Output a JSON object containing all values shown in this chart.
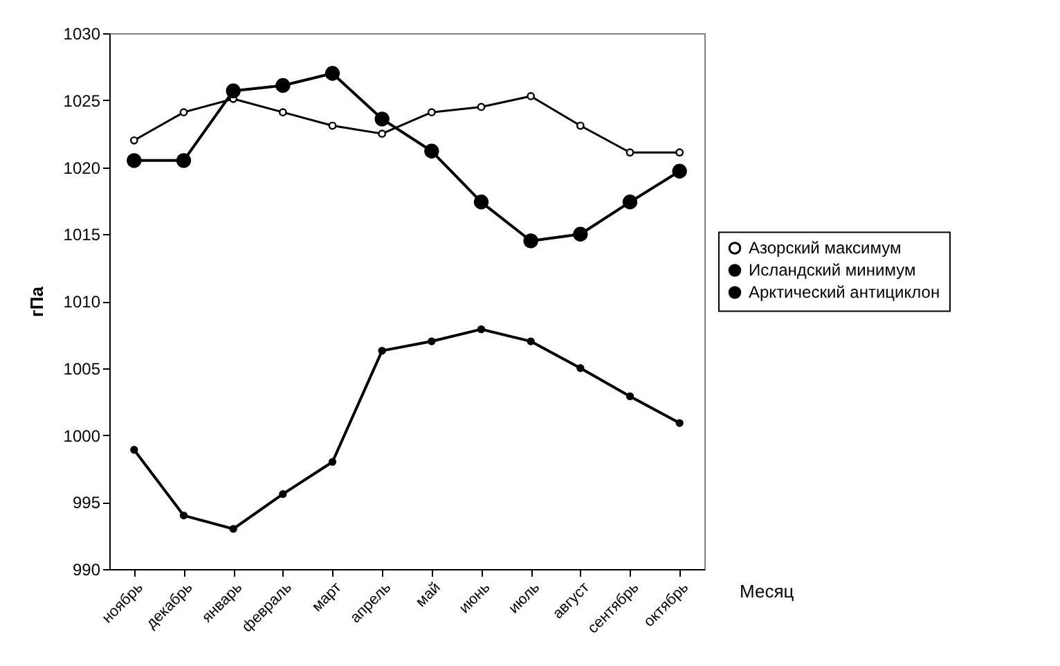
{
  "chart_data": {
    "type": "line",
    "xlabel": "Месяц",
    "ylabel": "гПа",
    "categories": [
      "ноябрь",
      "декабрь",
      "январь",
      "февраль",
      "март",
      "апрель",
      "май",
      "июнь",
      "июль",
      "август",
      "сентябрь",
      "октябрь"
    ],
    "series": [
      {
        "name": "Азорский максимум",
        "color": "#000000",
        "marker": "circle",
        "values": [
          1022.0,
          1024.1,
          1025.1,
          1024.1,
          1023.1,
          1022.5,
          1024.1,
          1024.5,
          1025.3,
          1023.1,
          1021.1,
          1021.1
        ]
      },
      {
        "name": "Исландский минимум",
        "color": "#000000",
        "marker": "circle",
        "values": [
          998.9,
          994.0,
          993.0,
          995.6,
          998.0,
          1006.3,
          1007.0,
          1007.9,
          1007.0,
          1005.0,
          1002.9,
          1000.9
        ]
      },
      {
        "name": "Арктический антициклон",
        "color": "#000000",
        "marker": "circle",
        "values": [
          1020.5,
          1020.5,
          1025.7,
          1026.1,
          1027.0,
          1023.6,
          1021.2,
          1017.4,
          1014.5,
          1015.0,
          1017.4,
          1019.7
        ]
      }
    ],
    "ylim": [
      990,
      1030
    ],
    "yticks": [
      990,
      995,
      1000,
      1005,
      1010,
      1015,
      1020,
      1025,
      1030
    ],
    "grid": false,
    "legend": "right",
    "line_style": "solid"
  }
}
